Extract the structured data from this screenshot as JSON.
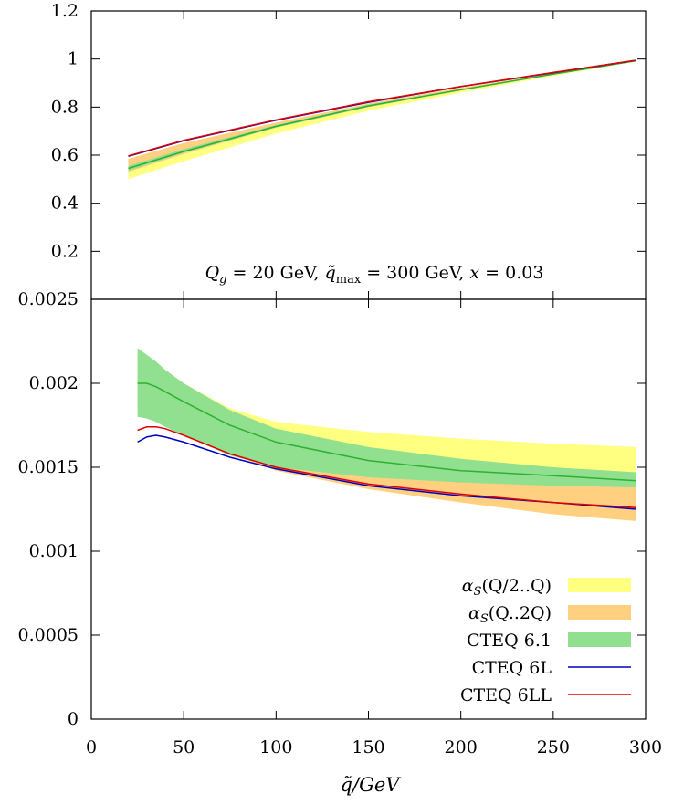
{
  "chart_data": [
    {
      "type": "area",
      "panel": "upper",
      "x_range": [
        0,
        300
      ],
      "ylim": [
        0,
        1.2
      ],
      "y_ticks": [
        0.2,
        0.4,
        0.6,
        0.8,
        1,
        1.2
      ],
      "y_tick_labels": [
        "0.2",
        "0.4",
        "0.6",
        "0.8",
        "1",
        "1.2"
      ],
      "annotation": "Q_g = 20 GeV, q̃_max = 300 GeV, x = 0.03",
      "x": [
        20,
        50,
        100,
        150,
        200,
        250,
        295
      ],
      "series": [
        {
          "name": "α_S(Q/2..Q)",
          "kind": "band",
          "color": "#ffff80",
          "lower": [
            0.5,
            0.575,
            0.69,
            0.785,
            0.86,
            0.93,
            0.99
          ],
          "upper": [
            0.585,
            0.65,
            0.735,
            0.815,
            0.88,
            0.94,
            0.995
          ]
        },
        {
          "name": "α_S(Q..2Q)",
          "kind": "band",
          "color": "#ffd080",
          "lower": [
            0.53,
            0.605,
            0.715,
            0.8,
            0.87,
            0.935,
            0.99
          ],
          "upper": [
            0.585,
            0.65,
            0.735,
            0.815,
            0.88,
            0.94,
            0.995
          ]
        },
        {
          "name": "CTEQ 6.1",
          "kind": "band",
          "color": "#90e090",
          "lower": [
            0.535,
            0.61,
            0.715,
            0.8,
            0.87,
            0.935,
            0.99
          ],
          "upper": [
            0.555,
            0.625,
            0.725,
            0.81,
            0.875,
            0.94,
            0.995
          ]
        },
        {
          "name": "CTEQ 6.1 central",
          "kind": "line",
          "color": "#30b030",
          "values": [
            0.545,
            0.615,
            0.72,
            0.805,
            0.872,
            0.937,
            0.993
          ]
        },
        {
          "name": "CTEQ 6L",
          "kind": "line",
          "color": "#0000c0",
          "values": [
            0.595,
            0.66,
            0.745,
            0.82,
            0.885,
            0.943,
            0.995
          ]
        },
        {
          "name": "CTEQ 6LL",
          "kind": "line",
          "color": "#e00000",
          "values": [
            0.597,
            0.662,
            0.747,
            0.822,
            0.886,
            0.944,
            0.995
          ]
        }
      ]
    },
    {
      "type": "area",
      "panel": "lower",
      "xlabel": "q̃/GeV",
      "x_range": [
        0,
        300
      ],
      "x_ticks": [
        0,
        50,
        100,
        150,
        200,
        250,
        300
      ],
      "x_tick_labels": [
        "0",
        "50",
        "100",
        "150",
        "200",
        "250",
        "300"
      ],
      "ylim": [
        0,
        0.0025
      ],
      "y_ticks": [
        0,
        0.0005,
        0.001,
        0.0015,
        0.002,
        0.0025
      ],
      "y_tick_labels": [
        "0",
        "0.0005",
        "0.001",
        "0.0015",
        "0.002",
        "0.0025"
      ],
      "legend_position": "bottom-right",
      "x": [
        25,
        30,
        35,
        40,
        50,
        75,
        100,
        150,
        200,
        250,
        295
      ],
      "series": [
        {
          "name": "α_S(Q/2..Q)",
          "kind": "band",
          "color": "#ffff80",
          "lower": [
            0.00185,
            0.00183,
            0.00181,
            0.00178,
            0.00172,
            0.00158,
            0.00148,
            0.00137,
            0.00129,
            0.00122,
            0.00118
          ],
          "upper": [
            0.0022,
            0.00217,
            0.00213,
            0.00208,
            0.002,
            0.00185,
            0.00177,
            0.00171,
            0.00167,
            0.00164,
            0.00162
          ]
        },
        {
          "name": "α_S(Q..2Q)",
          "kind": "band",
          "color": "#ffd080",
          "lower": [
            0.00185,
            0.00183,
            0.00181,
            0.00178,
            0.00172,
            0.00158,
            0.00148,
            0.00137,
            0.00129,
            0.00122,
            0.00118
          ],
          "upper": [
            0.00205,
            0.00203,
            0.002,
            0.00196,
            0.00189,
            0.00174,
            0.00165,
            0.00155,
            0.00149,
            0.00145,
            0.00143
          ]
        },
        {
          "name": "CTEQ 6.1",
          "kind": "band",
          "color": "#90e090",
          "lower": [
            0.0018,
            0.00179,
            0.00177,
            0.00174,
            0.00169,
            0.00157,
            0.0015,
            0.00144,
            0.00141,
            0.00139,
            0.00138
          ],
          "upper": [
            0.00221,
            0.00217,
            0.00213,
            0.00208,
            0.002,
            0.00184,
            0.00173,
            0.00162,
            0.00155,
            0.0015,
            0.00147
          ]
        },
        {
          "name": "CTEQ 6.1 central",
          "kind": "line",
          "color": "#30b030",
          "values": [
            0.002,
            0.002,
            0.00198,
            0.00195,
            0.00189,
            0.00175,
            0.00165,
            0.00154,
            0.00148,
            0.00145,
            0.00142
          ]
        },
        {
          "name": "CTEQ 6L",
          "kind": "line",
          "color": "#0000c0",
          "values": [
            0.00165,
            0.00168,
            0.00169,
            0.00168,
            0.00165,
            0.00156,
            0.00149,
            0.00139,
            0.00133,
            0.00129,
            0.00125
          ]
        },
        {
          "name": "CTEQ 6LL",
          "kind": "line",
          "color": "#e00000",
          "values": [
            0.00172,
            0.00174,
            0.00174,
            0.00173,
            0.00169,
            0.00158,
            0.0015,
            0.0014,
            0.00134,
            0.00129,
            0.00126
          ]
        }
      ],
      "legend": [
        {
          "label": "α_S(Q/2..Q)",
          "kind": "band",
          "color": "#ffff80"
        },
        {
          "label": "α_S(Q..2Q)",
          "kind": "band",
          "color": "#ffd080"
        },
        {
          "label": "CTEQ 6.1",
          "kind": "band",
          "color": "#90e090"
        },
        {
          "label": "CTEQ 6L",
          "kind": "line",
          "color": "#0000c0"
        },
        {
          "label": "CTEQ 6LL",
          "kind": "line",
          "color": "#e00000"
        }
      ]
    }
  ]
}
